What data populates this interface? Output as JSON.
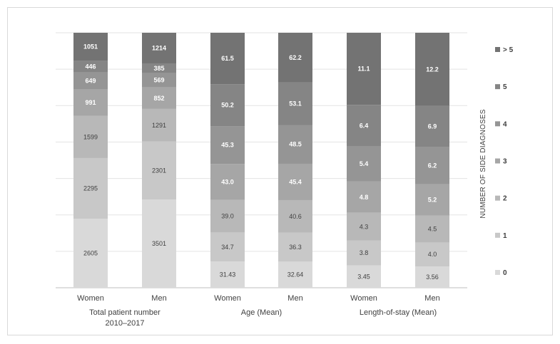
{
  "chart_data": {
    "type": "bar",
    "stacked": "percent",
    "grid": "horizontal",
    "legend_position": "right",
    "legend_title": "NUMBER OF SIDE DIAGNOSES",
    "series": [
      {
        "name": "0",
        "color": "#d9d9d9",
        "text_color": "#404040"
      },
      {
        "name": "1",
        "color": "#c8c8c8",
        "text_color": "#404040"
      },
      {
        "name": "2",
        "color": "#b8b8b8",
        "text_color": "#404040"
      },
      {
        "name": "3",
        "color": "#a6a6a6",
        "text_color": "#ffffff"
      },
      {
        "name": "4",
        "color": "#959595",
        "text_color": "#ffffff"
      },
      {
        "name": "5",
        "color": "#858585",
        "text_color": "#ffffff"
      },
      {
        "name": "> 5",
        "color": "#737373",
        "text_color": "#ffffff"
      }
    ],
    "groups": [
      {
        "label": "Total patient number\n2010–2017",
        "bars": [
          {
            "label": "Women",
            "values": [
              "2605",
              "2295",
              "1599",
              "991",
              "649",
              "446",
              "1051"
            ]
          },
          {
            "label": "Men",
            "values": [
              "3501",
              "2301",
              "1291",
              "852",
              "569",
              "385",
              "1214"
            ]
          }
        ]
      },
      {
        "label": "Age (Mean)",
        "bars": [
          {
            "label": "Women",
            "values": [
              "31.43",
              "34.7",
              "39.0",
              "43.0",
              "45.3",
              "50.2",
              "61.5"
            ]
          },
          {
            "label": "Men",
            "values": [
              "32.64",
              "36.3",
              "40.6",
              "45.4",
              "48.5",
              "53.1",
              "62.2"
            ]
          }
        ]
      },
      {
        "label": "Length-of-stay (Mean)",
        "bars": [
          {
            "label": "Women",
            "values": [
              "3.45",
              "3.8",
              "4.3",
              "4.8",
              "5.4",
              "6.4",
              "11.1"
            ]
          },
          {
            "label": "Men",
            "values": [
              "3.56",
              "4.0",
              "4.5",
              "5.2",
              "6.2",
              "6.9",
              "12.2"
            ]
          }
        ]
      }
    ]
  }
}
